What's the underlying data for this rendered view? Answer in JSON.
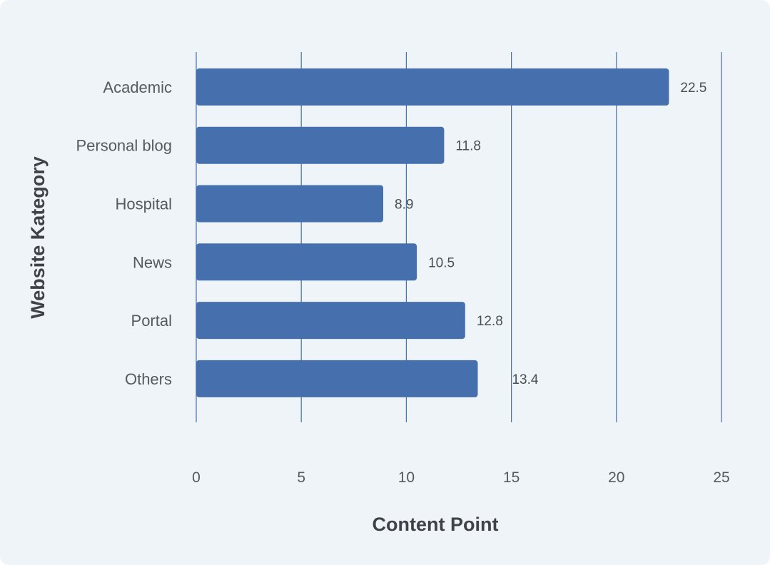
{
  "chart_data": {
    "type": "bar",
    "orientation": "horizontal",
    "categories": [
      "Academic",
      "Personal blog",
      "Hospital",
      "News",
      "Portal",
      "Others"
    ],
    "values": [
      22.5,
      11.8,
      8.9,
      10.5,
      12.8,
      13.4
    ],
    "value_labels": [
      "22.5",
      "11.8",
      "8.9",
      "10.5",
      "12.8",
      "13.4"
    ],
    "xlabel": "Content Point",
    "ylabel": "Website Kategory",
    "xlim": [
      0,
      25
    ],
    "xticks": [
      0,
      5,
      10,
      15,
      20,
      25
    ],
    "xtick_labels": [
      "0",
      "5",
      "10",
      "15",
      "20",
      "25"
    ],
    "grid": true,
    "colors": {
      "bar": "#4670ad",
      "grid": "#4670ad",
      "background": "#eff4f9"
    }
  }
}
